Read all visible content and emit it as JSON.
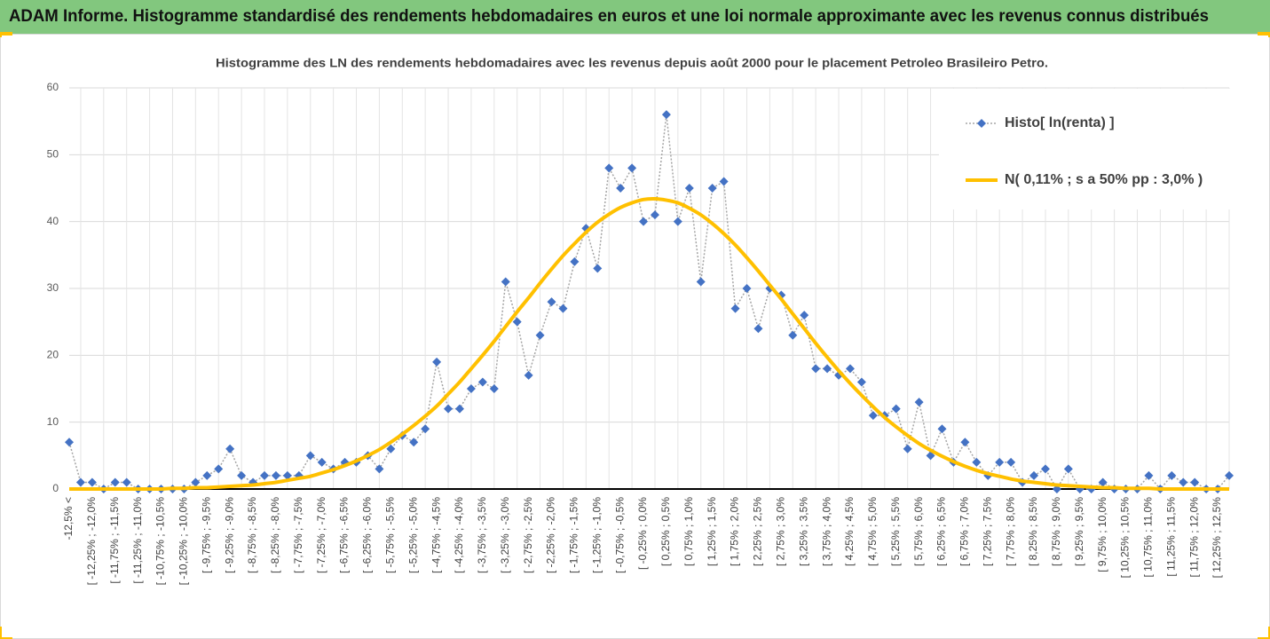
{
  "header": {
    "title": "ADAM Informe. Histogramme standardisé des rendements hebdomadaires en euros et une loi normale approximante avec les revenus connus distribués"
  },
  "chart_data": {
    "type": "line",
    "title": "Histogramme des LN des rendements hebdomadaires avec les revenus depuis août 2000 pour le placement Petroleo Brasileiro  Petro.",
    "categories": [
      "-12,5% <",
      null,
      "[ -12,25% ; -12,0%",
      null,
      "[ -11,75% ; -11,5%",
      null,
      "[ -11,25% ; -11,0%",
      null,
      "[ -10,75% ; -10,5%",
      null,
      "[ -10,25% ; -10,0%",
      null,
      "[ -9,75% ; -9,5%",
      null,
      "[ -9,25% ; -9,0%",
      null,
      "[ -8,75% ; -8,5%",
      null,
      "[ -8,25% ; -8,0%",
      null,
      "[ -7,75% ; -7,5%",
      null,
      "[ -7,25% ; -7,0%",
      null,
      "[ -6,75% ; -6,5%",
      null,
      "[ -6,25% ; -6,0%",
      null,
      "[ -5,75% ; -5,5%",
      null,
      "[ -5,25% ; -5,0%",
      null,
      "[ -4,75% ; -4,5%",
      null,
      "[ -4,25% ; -4,0%",
      null,
      "[ -3,75% ; -3,5%",
      null,
      "[ -3,25% ; -3,0%",
      null,
      "[ -2,75% ; -2,5%",
      null,
      "[ -2,25% ; -2,0%",
      null,
      "[ -1,75% ; -1,5%",
      null,
      "[ -1,25% ; -1,0%",
      null,
      "[ -0,75% ; -0,5%",
      null,
      "[ -0,25% ; 0,0%",
      null,
      "[ 0,25% ; 0,5%",
      null,
      "[ 0,75% ; 1,0%",
      null,
      "[ 1,25% ; 1,5%",
      null,
      "[ 1,75% ; 2,0%",
      null,
      "[ 2,25% ; 2,5%",
      null,
      "[ 2,75% ; 3,0%",
      null,
      "[ 3,25% ; 3,5%",
      null,
      "[ 3,75% ; 4,0%",
      null,
      "[ 4,25% ; 4,5%",
      null,
      "[ 4,75% ; 5,0%",
      null,
      "[ 5,25% ; 5,5%",
      null,
      "[ 5,75% ; 6,0%",
      null,
      "[ 6,25% ; 6,5%",
      null,
      "[ 6,75% ; 7,0%",
      null,
      "[ 7,25% ; 7,5%",
      null,
      "[ 7,75% ; 8,0%",
      null,
      "[ 8,25% ; 8,5%",
      null,
      "[ 8,75% ; 9,0%",
      null,
      "[ 9,25% ; 9,5%",
      null,
      "[ 9,75% ; 10,0%",
      null,
      "[ 10,25% ; 10,5%",
      null,
      "[ 10,75% ; 11,0%",
      null,
      "[ 11,25% ; 11,5%",
      null,
      "[ 11,75% ; 12,0%",
      null,
      "[ 12,25% ; 12,5%",
      null
    ],
    "series": [
      {
        "name": "Histo[ ln(renta) ]",
        "color": "#4472c4",
        "line_color": "#a5a5a5",
        "style": "dotted-markers",
        "values": [
          7,
          1,
          1,
          0,
          1,
          1,
          0,
          0,
          0,
          0,
          0,
          1,
          2,
          3,
          6,
          2,
          1,
          2,
          2,
          2,
          2,
          5,
          4,
          3,
          4,
          4,
          5,
          3,
          6,
          8,
          7,
          9,
          19,
          12,
          12,
          15,
          16,
          15,
          31,
          25,
          17,
          23,
          28,
          27,
          34,
          39,
          33,
          48,
          45,
          48,
          40,
          41,
          56,
          40,
          45,
          31,
          45,
          46,
          27,
          30,
          24,
          30,
          29,
          23,
          26,
          18,
          18,
          17,
          18,
          16,
          11,
          11,
          12,
          6,
          13,
          5,
          9,
          4,
          7,
          4,
          2,
          4,
          4,
          1,
          2,
          3,
          0,
          3,
          0,
          0,
          1,
          0,
          0,
          0,
          2,
          0,
          2,
          1,
          1,
          0,
          0,
          2
        ]
      },
      {
        "name": "N( 0,11% ; s a 50% pp : 3,0% )",
        "color": "#ffc000",
        "style": "smooth",
        "values": [
          0,
          0,
          0,
          0,
          0,
          0,
          0,
          0,
          0,
          0.1,
          0.1,
          0.2,
          0.2,
          0.3,
          0.4,
          0.5,
          0.6,
          0.8,
          1.0,
          1.3,
          1.6,
          1.9,
          2.4,
          2.9,
          3.5,
          4.2,
          5.0,
          5.9,
          7.0,
          8.2,
          9.5,
          10.9,
          12.4,
          14.2,
          16.0,
          18.0,
          20.0,
          22.1,
          24.3,
          26.5,
          28.6,
          30.8,
          32.9,
          34.9,
          36.7,
          38.4,
          39.9,
          41.1,
          42.1,
          42.8,
          43.3,
          43.4,
          43.2,
          42.8,
          42.0,
          41.0,
          39.7,
          38.2,
          36.5,
          34.6,
          32.6,
          30.5,
          28.4,
          26.2,
          24.0,
          21.8,
          19.7,
          17.7,
          15.8,
          14.0,
          12.3,
          10.7,
          9.3,
          8.0,
          6.8,
          5.8,
          4.9,
          4.1,
          3.4,
          2.8,
          2.3,
          1.9,
          1.5,
          1.2,
          1.0,
          0.8,
          0.6,
          0.5,
          0.4,
          0.3,
          0.2,
          0.2,
          0.1,
          0.1,
          0.1,
          0,
          0,
          0,
          0,
          0,
          0,
          0
        ]
      }
    ],
    "ylim": [
      0,
      60
    ],
    "yticks": [
      0,
      10,
      20,
      30,
      40,
      50,
      60
    ],
    "grid": true,
    "legend": "top-right"
  }
}
